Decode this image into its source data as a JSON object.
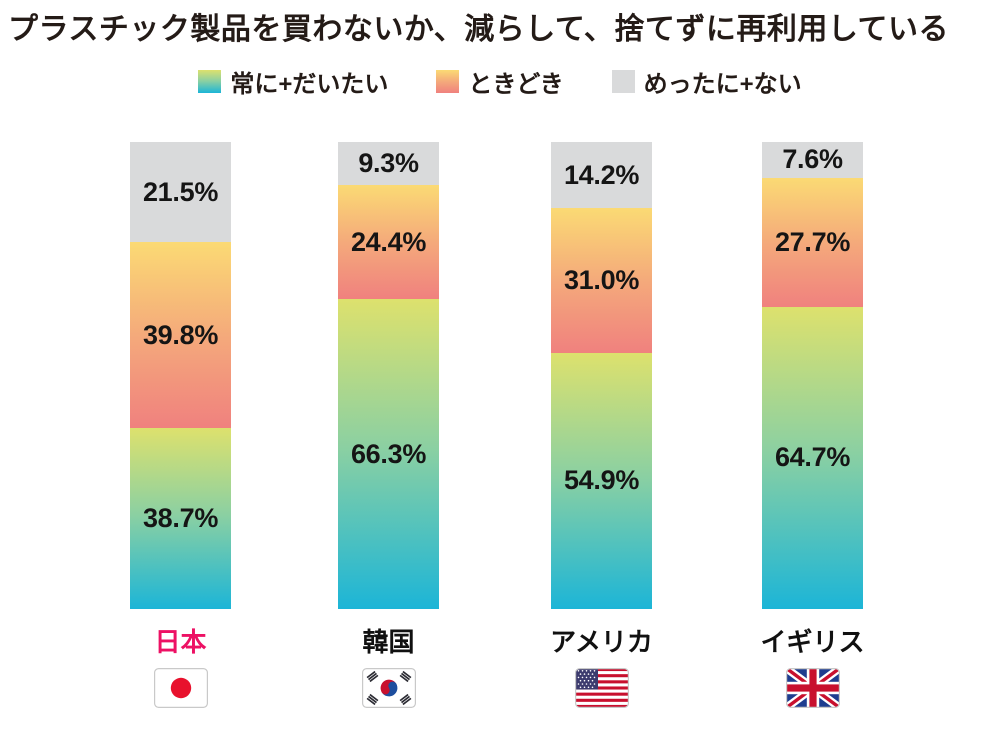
{
  "title": "プラスチック製品を買わないか、減らして、捨てずに再利用している",
  "legend": [
    {
      "label": "常に+だいたい",
      "swatch": "always-gradient-swatch"
    },
    {
      "label": "ときどき",
      "swatch": "sometimes-gradient-swatch"
    },
    {
      "label": "めったに+ない",
      "swatch": "rare-gray-swatch"
    }
  ],
  "colors": {
    "always_top": "#dde16d",
    "always_mid": "#8bd0a2",
    "always_bottom": "#1cb5d7",
    "sometimes_top": "#fbda74",
    "sometimes_mid": "#f4a87b",
    "sometimes_bottom": "#f0817e",
    "rare": "#d9dadb",
    "title_text": "#241b17",
    "value_text": "#151515",
    "country_label": "#111111",
    "japan_label": "#ed1164"
  },
  "columns": [
    {
      "country": "日本",
      "country_color": "#ed1164",
      "flag": "flag-japan",
      "flag_name": "japan-flag-icon",
      "segments": [
        {
          "kind": "rare",
          "label": "21.5%",
          "value": 21.5
        },
        {
          "kind": "sometimes",
          "label": "39.8%",
          "value": 39.8
        },
        {
          "kind": "always",
          "label": "38.7%",
          "value": 38.7
        }
      ]
    },
    {
      "country": "韓国",
      "country_color": "#111111",
      "flag": "flag-korea",
      "flag_name": "korea-flag-icon",
      "segments": [
        {
          "kind": "rare",
          "label": "9.3%",
          "value": 9.3
        },
        {
          "kind": "sometimes",
          "label": "24.4%",
          "value": 24.4
        },
        {
          "kind": "always",
          "label": "66.3%",
          "value": 66.3
        }
      ]
    },
    {
      "country": "アメリカ",
      "country_color": "#111111",
      "flag": "flag-usa",
      "flag_name": "usa-flag-icon",
      "segments": [
        {
          "kind": "rare",
          "label": "14.2%",
          "value": 14.2
        },
        {
          "kind": "sometimes",
          "label": "31.0%",
          "value": 31.0
        },
        {
          "kind": "always",
          "label": "54.9%",
          "value": 54.9
        }
      ]
    },
    {
      "country": "イギリス",
      "country_color": "#111111",
      "flag": "flag-uk",
      "flag_name": "uk-flag-icon",
      "segments": [
        {
          "kind": "rare",
          "label": "7.6%",
          "value": 7.6
        },
        {
          "kind": "sometimes",
          "label": "27.7%",
          "value": 27.7
        },
        {
          "kind": "always",
          "label": "64.7%",
          "value": 64.7
        }
      ]
    }
  ],
  "chart_data": {
    "type": "bar",
    "stacked": true,
    "orientation": "vertical",
    "title": "プラスチック製品を買わないか、減らして、捨てずに再利用している",
    "unit": "%",
    "categories": [
      "日本",
      "韓国",
      "アメリカ",
      "イギリス"
    ],
    "series": [
      {
        "name": "常に+だいたい",
        "values": [
          38.7,
          66.3,
          54.9,
          64.7
        ]
      },
      {
        "name": "ときどき",
        "values": [
          39.8,
          24.4,
          31.0,
          27.7
        ]
      },
      {
        "name": "めったに+ない",
        "values": [
          21.5,
          9.3,
          14.2,
          7.6
        ]
      }
    ],
    "value_labels": true,
    "ylim": [
      0,
      100
    ],
    "grid": false,
    "axes_shown": false,
    "legend_position": "top",
    "segment_order_top_to_bottom": [
      "めったに+ない",
      "ときどき",
      "常に+だいたい"
    ]
  }
}
